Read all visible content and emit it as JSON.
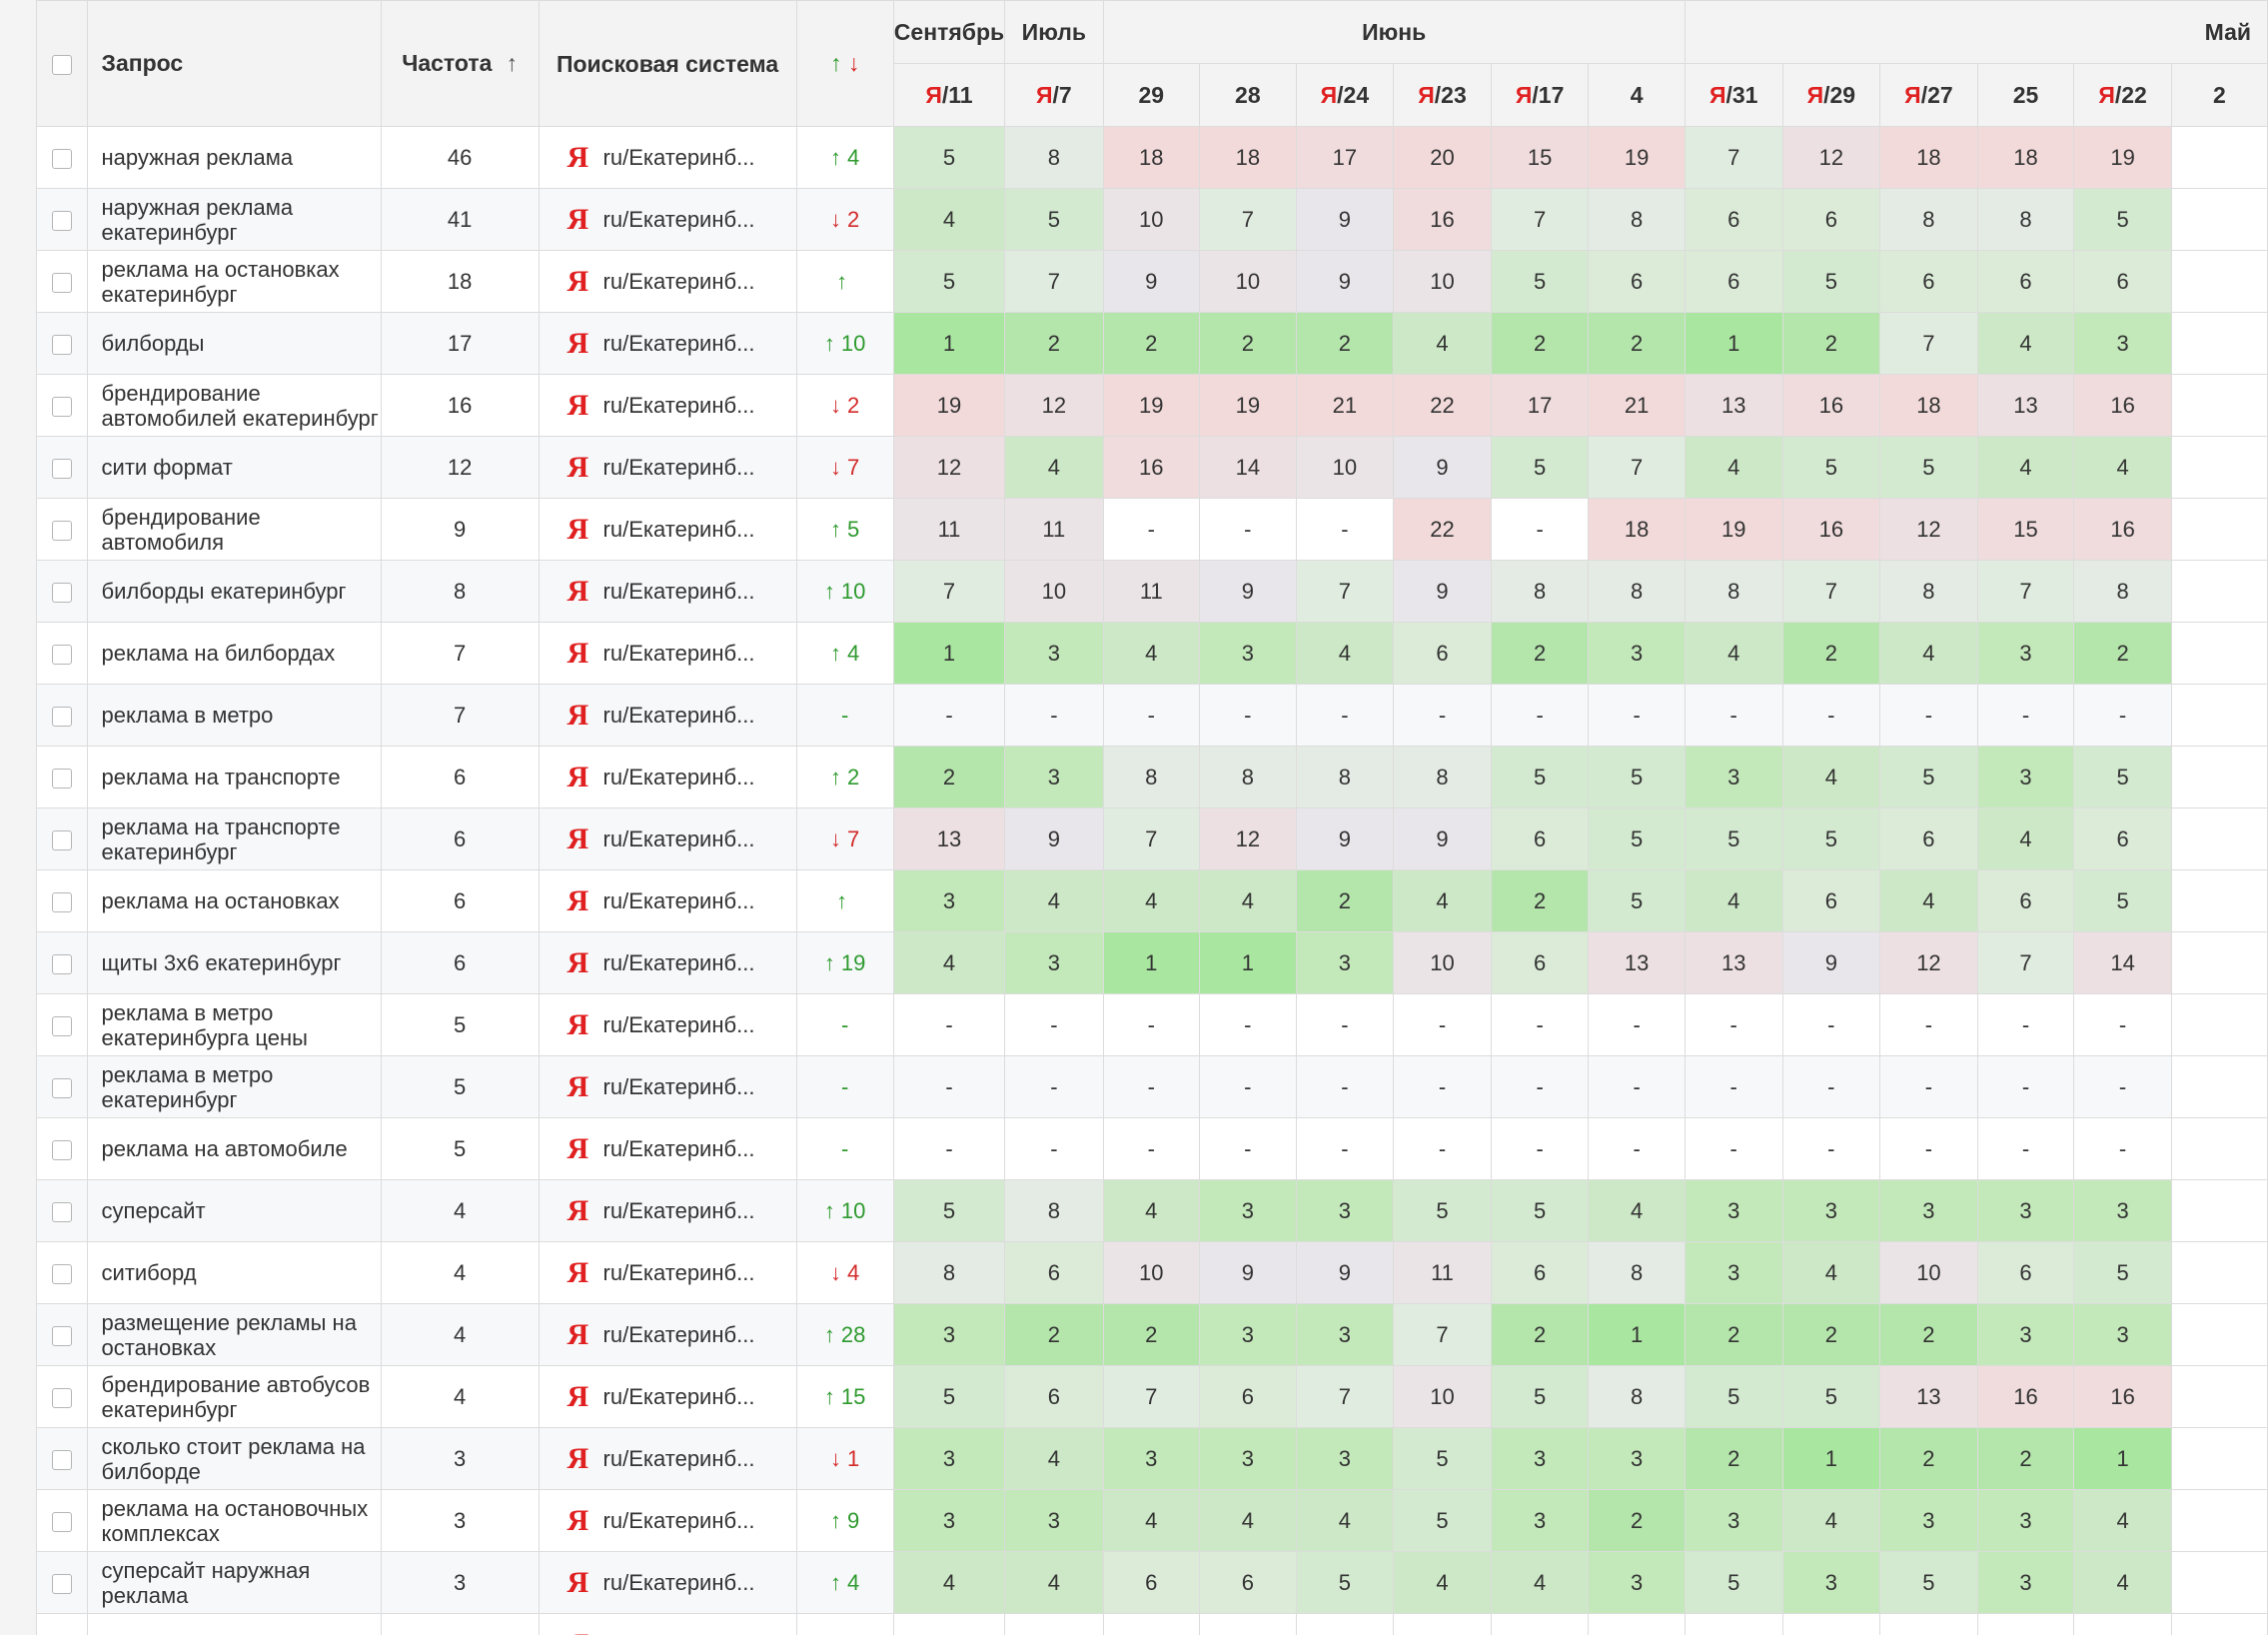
{
  "header": {
    "query": "Запрос",
    "frequency": "Частота",
    "frequency_sort": "↑",
    "search_engine": "Поисковая система",
    "trend_up": "↑",
    "trend_down": "↓"
  },
  "months": [
    {
      "label": "Сентябрь",
      "span": 1
    },
    {
      "label": "Июль",
      "span": 1
    },
    {
      "label": "Июнь",
      "span": 6
    },
    {
      "label": "Май",
      "span": 6
    }
  ],
  "dates": [
    {
      "prefix": "Я",
      "num": "/11"
    },
    {
      "prefix": "Я",
      "num": "/7"
    },
    {
      "prefix": "",
      "num": "29"
    },
    {
      "prefix": "",
      "num": "28"
    },
    {
      "prefix": "Я",
      "num": "/24"
    },
    {
      "prefix": "Я",
      "num": "/23"
    },
    {
      "prefix": "Я",
      "num": "/17"
    },
    {
      "prefix": "",
      "num": "4"
    },
    {
      "prefix": "Я",
      "num": "/31"
    },
    {
      "prefix": "Я",
      "num": "/29"
    },
    {
      "prefix": "Я",
      "num": "/27"
    },
    {
      "prefix": "",
      "num": "25"
    },
    {
      "prefix": "Я",
      "num": "/22"
    },
    {
      "prefix": "",
      "num": "2"
    }
  ],
  "region": "ru/Екатеринб...",
  "engine_logo": "Я",
  "rows": [
    {
      "query": "наружная реклама",
      "freq": "46",
      "trend_dir": "up",
      "trend_val": "4",
      "positions": [
        "5",
        "8",
        "18",
        "18",
        "17",
        "20",
        "15",
        "19",
        "7",
        "12",
        "18",
        "18",
        "19",
        ""
      ]
    },
    {
      "query": "наружная реклама екатеринбург",
      "freq": "41",
      "trend_dir": "down",
      "trend_val": "2",
      "positions": [
        "4",
        "5",
        "10",
        "7",
        "9",
        "16",
        "7",
        "8",
        "6",
        "6",
        "8",
        "8",
        "5",
        ""
      ]
    },
    {
      "query": "реклама на остановках екатеринбург",
      "freq": "18",
      "trend_dir": "up",
      "trend_val": "",
      "positions": [
        "5",
        "7",
        "9",
        "10",
        "9",
        "10",
        "5",
        "6",
        "6",
        "5",
        "6",
        "6",
        "6",
        ""
      ]
    },
    {
      "query": "билборды",
      "freq": "17",
      "trend_dir": "up",
      "trend_val": "10",
      "positions": [
        "1",
        "2",
        "2",
        "2",
        "2",
        "4",
        "2",
        "2",
        "1",
        "2",
        "7",
        "4",
        "3",
        ""
      ]
    },
    {
      "query": "брендирование автомобилей екатеринбург",
      "freq": "16",
      "trend_dir": "down",
      "trend_val": "2",
      "positions": [
        "19",
        "12",
        "19",
        "19",
        "21",
        "22",
        "17",
        "21",
        "13",
        "16",
        "18",
        "13",
        "16",
        ""
      ]
    },
    {
      "query": "сити формат",
      "freq": "12",
      "trend_dir": "down",
      "trend_val": "7",
      "positions": [
        "12",
        "4",
        "16",
        "14",
        "10",
        "9",
        "5",
        "7",
        "4",
        "5",
        "5",
        "4",
        "4",
        ""
      ]
    },
    {
      "query": "брендирование автомобиля",
      "freq": "9",
      "trend_dir": "up",
      "trend_val": "5",
      "positions": [
        "11",
        "11",
        "-",
        "-",
        "-",
        "22",
        "-",
        "18",
        "19",
        "16",
        "12",
        "15",
        "16",
        ""
      ]
    },
    {
      "query": "билборды екатеринбург",
      "freq": "8",
      "trend_dir": "up",
      "trend_val": "10",
      "positions": [
        "7",
        "10",
        "11",
        "9",
        "7",
        "9",
        "8",
        "8",
        "8",
        "7",
        "8",
        "7",
        "8",
        ""
      ]
    },
    {
      "query": "реклама на билбордах",
      "freq": "7",
      "trend_dir": "up",
      "trend_val": "4",
      "positions": [
        "1",
        "3",
        "4",
        "3",
        "4",
        "6",
        "2",
        "3",
        "4",
        "2",
        "4",
        "3",
        "2",
        ""
      ]
    },
    {
      "query": "реклама в метро",
      "freq": "7",
      "trend_dir": "none",
      "trend_val": "-",
      "positions": [
        "-",
        "-",
        "-",
        "-",
        "-",
        "-",
        "-",
        "-",
        "-",
        "-",
        "-",
        "-",
        "-",
        ""
      ]
    },
    {
      "query": "реклама на транспорте",
      "freq": "6",
      "trend_dir": "up",
      "trend_val": "2",
      "positions": [
        "2",
        "3",
        "8",
        "8",
        "8",
        "8",
        "5",
        "5",
        "3",
        "4",
        "5",
        "3",
        "5",
        ""
      ]
    },
    {
      "query": "реклама на транспорте екатеринбург",
      "freq": "6",
      "trend_dir": "down",
      "trend_val": "7",
      "positions": [
        "13",
        "9",
        "7",
        "12",
        "9",
        "9",
        "6",
        "5",
        "5",
        "5",
        "6",
        "4",
        "6",
        ""
      ]
    },
    {
      "query": "реклама на остановках",
      "freq": "6",
      "trend_dir": "up",
      "trend_val": "",
      "positions": [
        "3",
        "4",
        "4",
        "4",
        "2",
        "4",
        "2",
        "5",
        "4",
        "6",
        "4",
        "6",
        "5",
        ""
      ]
    },
    {
      "query": "щиты 3х6 екатеринбург",
      "freq": "6",
      "trend_dir": "up",
      "trend_val": "19",
      "positions": [
        "4",
        "3",
        "1",
        "1",
        "3",
        "10",
        "6",
        "13",
        "13",
        "9",
        "12",
        "7",
        "14",
        ""
      ]
    },
    {
      "query": "реклама в метро екатеринбурга цены",
      "freq": "5",
      "trend_dir": "none",
      "trend_val": "-",
      "positions": [
        "-",
        "-",
        "-",
        "-",
        "-",
        "-",
        "-",
        "-",
        "-",
        "-",
        "-",
        "-",
        "-",
        ""
      ]
    },
    {
      "query": "реклама в метро екатеринбург",
      "freq": "5",
      "trend_dir": "none",
      "trend_val": "-",
      "positions": [
        "-",
        "-",
        "-",
        "-",
        "-",
        "-",
        "-",
        "-",
        "-",
        "-",
        "-",
        "-",
        "-",
        ""
      ]
    },
    {
      "query": "реклама на автомобиле",
      "freq": "5",
      "trend_dir": "none",
      "trend_val": "-",
      "positions": [
        "-",
        "-",
        "-",
        "-",
        "-",
        "-",
        "-",
        "-",
        "-",
        "-",
        "-",
        "-",
        "-",
        ""
      ]
    },
    {
      "query": "суперсайт",
      "freq": "4",
      "trend_dir": "up",
      "trend_val": "10",
      "positions": [
        "5",
        "8",
        "4",
        "3",
        "3",
        "5",
        "5",
        "4",
        "3",
        "3",
        "3",
        "3",
        "3",
        ""
      ]
    },
    {
      "query": "ситиборд",
      "freq": "4",
      "trend_dir": "down",
      "trend_val": "4",
      "positions": [
        "8",
        "6",
        "10",
        "9",
        "9",
        "11",
        "6",
        "8",
        "3",
        "4",
        "10",
        "6",
        "5",
        ""
      ]
    },
    {
      "query": "размещение рекламы на остановках",
      "freq": "4",
      "trend_dir": "up",
      "trend_val": "28",
      "positions": [
        "3",
        "2",
        "2",
        "3",
        "3",
        "7",
        "2",
        "1",
        "2",
        "2",
        "2",
        "3",
        "3",
        ""
      ]
    },
    {
      "query": "брендирование автобусов екатеринбург",
      "freq": "4",
      "trend_dir": "up",
      "trend_val": "15",
      "positions": [
        "5",
        "6",
        "7",
        "6",
        "7",
        "10",
        "5",
        "8",
        "5",
        "5",
        "13",
        "16",
        "16",
        ""
      ]
    },
    {
      "query": "сколько стоит реклама на билборде",
      "freq": "3",
      "trend_dir": "down",
      "trend_val": "1",
      "positions": [
        "3",
        "4",
        "3",
        "3",
        "3",
        "5",
        "3",
        "3",
        "2",
        "1",
        "2",
        "2",
        "1",
        ""
      ]
    },
    {
      "query": "реклама на остановочных комплексах",
      "freq": "3",
      "trend_dir": "up",
      "trend_val": "9",
      "positions": [
        "3",
        "3",
        "4",
        "4",
        "4",
        "5",
        "3",
        "2",
        "3",
        "4",
        "3",
        "3",
        "4",
        ""
      ]
    },
    {
      "query": "суперсайт наружная реклама",
      "freq": "3",
      "trend_dir": "up",
      "trend_val": "4",
      "positions": [
        "4",
        "4",
        "6",
        "6",
        "5",
        "4",
        "4",
        "3",
        "5",
        "3",
        "5",
        "3",
        "4",
        ""
      ]
    },
    {
      "query": "размещение рекламы на",
      "freq": "",
      "trend_dir": "up",
      "trend_val": "",
      "positions": [
        "",
        "",
        "",
        "",
        "",
        "",
        "",
        "",
        "",
        "",
        "",
        "",
        "",
        ""
      ]
    }
  ],
  "colors": {
    "ya_red": "#e02020",
    "trend_up": "#2e9a2e",
    "trend_down": "#d42a2a"
  }
}
